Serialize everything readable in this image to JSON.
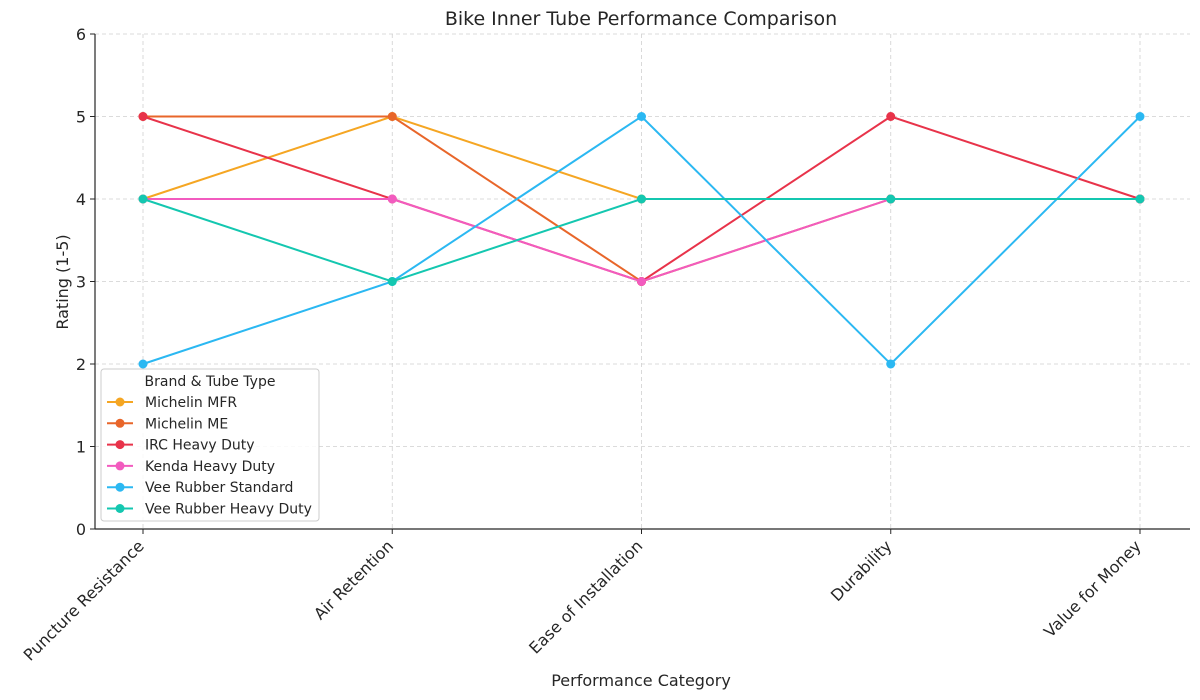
{
  "chart_data": {
    "type": "line",
    "title": "Bike Inner Tube Performance Comparison",
    "xlabel": "Performance Category",
    "ylabel": "Rating (1-5)",
    "categories": [
      "Puncture Resistance",
      "Air Retention",
      "Ease of Installation",
      "Durability",
      "Value for Money"
    ],
    "ylim": [
      0,
      6
    ],
    "yticks": [
      "0",
      "1",
      "2",
      "3",
      "4",
      "5",
      "6"
    ],
    "grid": true,
    "legend": {
      "title": "Brand & Tube Type",
      "placement": "lower-left"
    },
    "series": [
      {
        "name": "Michelin MFR",
        "color": "#f5a623",
        "values": [
          4,
          5,
          4,
          4,
          4
        ]
      },
      {
        "name": "Michelin ME",
        "color": "#e8662a",
        "values": [
          5,
          5,
          3,
          4,
          4
        ]
      },
      {
        "name": "IRC Heavy Duty",
        "color": "#e8334a",
        "values": [
          5,
          4,
          3,
          5,
          4
        ]
      },
      {
        "name": "Kenda Heavy Duty",
        "color": "#f25bbf",
        "values": [
          4,
          4,
          3,
          4,
          4
        ]
      },
      {
        "name": "Vee Rubber Standard",
        "color": "#2bb8f2",
        "values": [
          2,
          3,
          5,
          2,
          5
        ]
      },
      {
        "name": "Vee Rubber Heavy Duty",
        "color": "#14c7b0",
        "values": [
          4,
          3,
          4,
          4,
          4
        ]
      }
    ]
  }
}
